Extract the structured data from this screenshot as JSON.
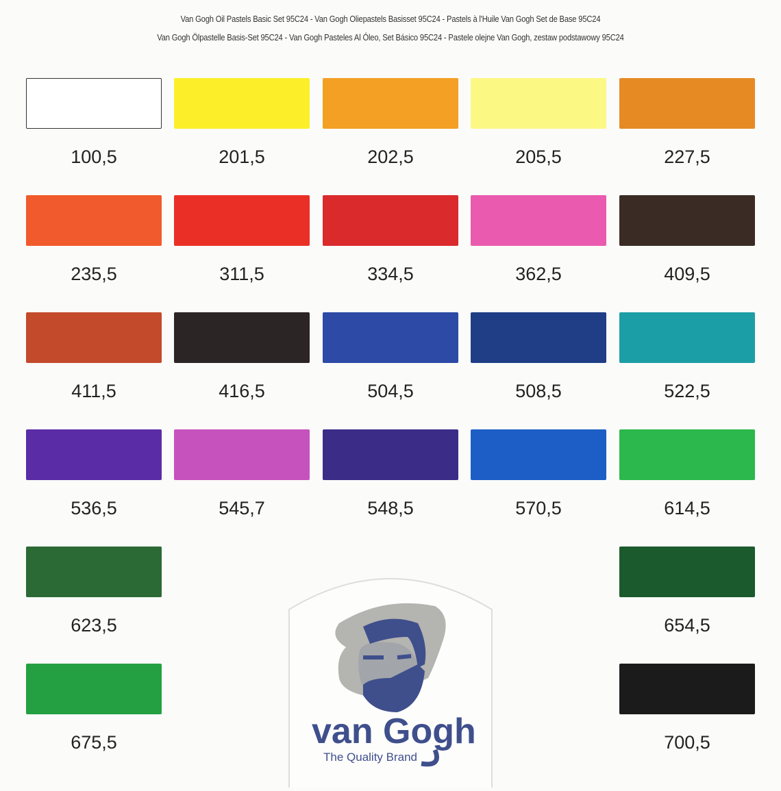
{
  "header": {
    "line1": "Van Gogh Oil Pastels Basic Set 95C24 -  Van Gogh Oliepastels Basisset 95C24 - Pastels à l'Huile Van Gogh Set de Base 95C24",
    "line2": "Van Gogh Ölpastelle Basis-Set 95C24 - Van Gogh Pasteles Al Óleo, Set Básico 95C24 - Pastele olejne Van Gogh, zestaw podstawowy 95C24"
  },
  "swatches": [
    {
      "code": "100,5",
      "color": "#ffffff"
    },
    {
      "code": "201,5",
      "color": "#fcef2a"
    },
    {
      "code": "202,5",
      "color": "#f3a024"
    },
    {
      "code": "205,5",
      "color": "#fcf884"
    },
    {
      "code": "227,5",
      "color": "#e68a24"
    },
    {
      "code": "235,5",
      "color": "#f15a2c"
    },
    {
      "code": "311,5",
      "color": "#ea3026"
    },
    {
      "code": "334,5",
      "color": "#da2a2c"
    },
    {
      "code": "362,5",
      "color": "#ea5aae"
    },
    {
      "code": "409,5",
      "color": "#3a2b24"
    },
    {
      "code": "411,5",
      "color": "#c44a2c"
    },
    {
      "code": "416,5",
      "color": "#2b2525"
    },
    {
      "code": "504,5",
      "color": "#2c4aa6"
    },
    {
      "code": "508,5",
      "color": "#1f3e86"
    },
    {
      "code": "522,5",
      "color": "#1c9ea6"
    },
    {
      "code": "536,5",
      "color": "#5a2ca6"
    },
    {
      "code": "545,7",
      "color": "#c652be"
    },
    {
      "code": "548,5",
      "color": "#3b2c88"
    },
    {
      "code": "570,5",
      "color": "#1c5ec6"
    },
    {
      "code": "614,5",
      "color": "#2cb84c"
    },
    {
      "code": "623,5",
      "color": "#2b6a34"
    },
    {
      "code": "654,5",
      "color": "#1b5a2c"
    },
    {
      "code": "675,5",
      "color": "#24a042"
    },
    {
      "code": "700,5",
      "color": "#1b1b1b"
    }
  ],
  "logo": {
    "brand": "van Gogh",
    "tagline": "The Quality Brand",
    "primary_color": "#3f4f8c",
    "hat_color": "#b4b4b0"
  }
}
